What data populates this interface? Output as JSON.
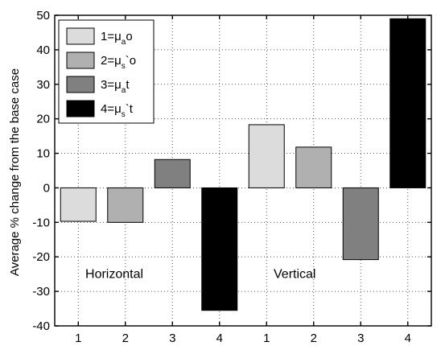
{
  "chart_data": {
    "type": "bar",
    "title": "",
    "xlabel": "",
    "ylabel": "Average % change from the base case",
    "ylim": [
      -40,
      50
    ],
    "yticks": [
      -40,
      -30,
      -20,
      -10,
      0,
      10,
      20,
      30,
      40,
      50
    ],
    "grid": true,
    "legend_position": "top-left",
    "categories": [
      "1",
      "2",
      "3",
      "4",
      "1",
      "2",
      "3",
      "4"
    ],
    "values": [
      -9.7,
      -10,
      8.2,
      -35.5,
      18.3,
      11.8,
      -20.8,
      49
    ],
    "bar_colors": [
      "#dcdcdc",
      "#b0b0b0",
      "#808080",
      "#000000",
      "#dcdcdc",
      "#b0b0b0",
      "#808080",
      "#000000"
    ],
    "groups": [
      {
        "label": "Horizontal"
      },
      {
        "label": "Vertical"
      }
    ],
    "legend": [
      {
        "main": "1=μ",
        "sub": "a",
        "tail": "o",
        "color": "#dcdcdc"
      },
      {
        "main": "2=μ",
        "sub": "s",
        "tail": "`o",
        "color": "#b0b0b0"
      },
      {
        "main": "3=μ",
        "sub": "a",
        "tail": "t",
        "color": "#808080"
      },
      {
        "main": "4=μ",
        "sub": "s",
        "tail": "`t",
        "color": "#000000"
      }
    ]
  }
}
